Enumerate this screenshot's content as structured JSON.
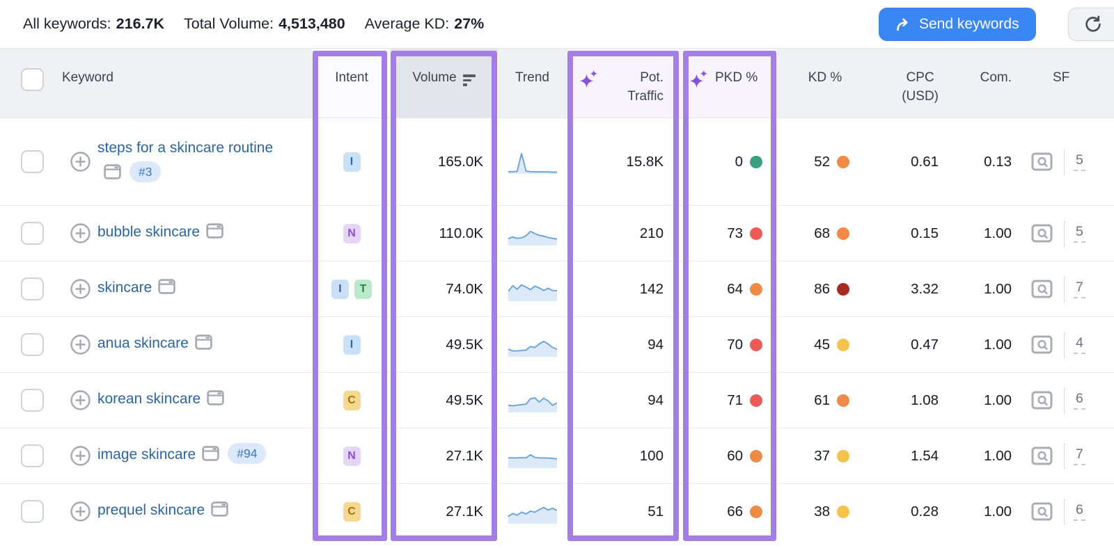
{
  "summary": {
    "all_keywords_label": "All keywords:",
    "all_keywords_value": "216.7K",
    "total_volume_label": "Total Volume:",
    "total_volume_value": "4,513,480",
    "average_kd_label": "Average KD:",
    "average_kd_value": "27%",
    "send_keywords_label": "Send keywords",
    "icons": {
      "send": "share-arrow-icon",
      "refresh": "refresh-icon"
    }
  },
  "colors": {
    "accent_blue": "#3a86f3",
    "highlight_purple": "#a37fe4",
    "link_blue": "#2e659e",
    "sparkline_stroke": "#6ba3d6",
    "sparkline_fill": "#dbe9f8",
    "dots": {
      "green": "#3f9e81",
      "yellow": "#f3c34b",
      "orange": "#ee8b49",
      "red": "#ec5b56",
      "dark_red": "#a52a21"
    }
  },
  "table": {
    "columns": {
      "keyword": "Keyword",
      "intent": "Intent",
      "volume": "Volume",
      "trend": "Trend",
      "pot_traffic_line1": "Pot.",
      "pot_traffic_line2": "Traffic",
      "pkd": "PKD %",
      "kd": "KD %",
      "cpc_line1": "CPC",
      "cpc_line2": "(USD)",
      "com": "Com.",
      "sf": "SF"
    },
    "rows": [
      {
        "keyword": "steps for a skincare routine",
        "two_line": true,
        "position_badge": "#3",
        "intents": [
          "I"
        ],
        "volume": "165.0K",
        "trend": [
          6,
          7,
          8,
          92,
          10,
          7,
          6,
          6,
          6,
          6,
          5,
          5
        ],
        "pot_traffic": "15.8K",
        "pkd": "0",
        "pkd_color": "green",
        "kd": "52",
        "kd_color": "orange",
        "cpc": "0.61",
        "com": "0.13",
        "sf": "5"
      },
      {
        "keyword": "bubble skincare",
        "two_line": false,
        "position_badge": "",
        "intents": [
          "N"
        ],
        "volume": "110.0K",
        "trend": [
          28,
          36,
          30,
          32,
          42,
          62,
          52,
          44,
          40,
          34,
          30,
          26
        ],
        "pot_traffic": "210",
        "pkd": "73",
        "pkd_color": "red",
        "kd": "68",
        "kd_color": "orange",
        "cpc": "0.15",
        "com": "1.00",
        "sf": "5"
      },
      {
        "keyword": "skincare",
        "two_line": false,
        "position_badge": "",
        "intents": [
          "I",
          "T"
        ],
        "volume": "74.0K",
        "trend": [
          42,
          68,
          52,
          72,
          62,
          50,
          66,
          58,
          46,
          56,
          46,
          45
        ],
        "pot_traffic": "142",
        "pkd": "64",
        "pkd_color": "orange",
        "kd": "86",
        "kd_color": "dark_red",
        "cpc": "3.32",
        "com": "1.00",
        "sf": "7"
      },
      {
        "keyword": "anua skincare",
        "two_line": false,
        "position_badge": "",
        "intents": [
          "I"
        ],
        "volume": "49.5K",
        "trend": [
          32,
          24,
          24,
          26,
          28,
          44,
          40,
          56,
          68,
          56,
          40,
          32
        ],
        "pot_traffic": "94",
        "pkd": "70",
        "pkd_color": "red",
        "kd": "45",
        "kd_color": "yellow",
        "cpc": "0.47",
        "com": "1.00",
        "sf": "4"
      },
      {
        "keyword": "korean skincare",
        "two_line": false,
        "position_badge": "",
        "intents": [
          "C"
        ],
        "volume": "49.5K",
        "trend": [
          30,
          27,
          30,
          33,
          35,
          60,
          64,
          45,
          63,
          50,
          30,
          40
        ],
        "pot_traffic": "94",
        "pkd": "71",
        "pkd_color": "red",
        "kd": "61",
        "kd_color": "orange",
        "cpc": "1.08",
        "com": "1.00",
        "sf": "6"
      },
      {
        "keyword": "image skincare",
        "two_line": false,
        "position_badge": "#94",
        "intents": [
          "N"
        ],
        "volume": "27.1K",
        "trend": [
          44,
          44,
          44,
          45,
          44,
          58,
          46,
          44,
          44,
          43,
          42,
          38
        ],
        "pot_traffic": "100",
        "pkd": "60",
        "pkd_color": "orange",
        "kd": "37",
        "kd_color": "yellow",
        "cpc": "1.54",
        "com": "1.00",
        "sf": "7"
      },
      {
        "keyword": "prequel skincare",
        "two_line": false,
        "position_badge": "",
        "intents": [
          "C"
        ],
        "volume": "27.1K",
        "trend": [
          30,
          44,
          36,
          50,
          42,
          55,
          50,
          62,
          72,
          60,
          68,
          58
        ],
        "pot_traffic": "51",
        "pkd": "66",
        "pkd_color": "orange",
        "kd": "38",
        "kd_color": "yellow",
        "cpc": "0.28",
        "com": "1.00",
        "sf": "6"
      }
    ]
  }
}
